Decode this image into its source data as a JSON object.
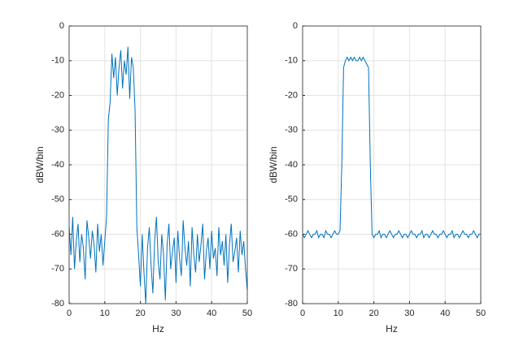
{
  "chart_data": [
    {
      "type": "line",
      "xlabel": "Hz",
      "ylabel": "dBW/bin",
      "x": [
        0,
        0.5,
        1,
        1.5,
        2,
        2.5,
        3,
        3.5,
        4,
        4.5,
        5,
        5.5,
        6,
        6.5,
        7,
        7.5,
        8,
        8.5,
        9,
        9.5,
        10,
        10.5,
        11,
        11.5,
        12,
        12.5,
        13,
        13.5,
        14,
        14.5,
        15,
        15.5,
        16,
        16.5,
        17,
        17.5,
        18,
        18.5,
        19,
        19.5,
        20,
        20.5,
        21,
        21.5,
        22,
        22.5,
        23,
        23.5,
        24,
        24.5,
        25,
        25.5,
        26,
        26.5,
        27,
        27.5,
        28,
        28.5,
        29,
        29.5,
        30,
        30.5,
        31,
        31.5,
        32,
        32.5,
        33,
        33.5,
        34,
        34.5,
        35,
        35.5,
        36,
        36.5,
        37,
        37.5,
        38,
        38.5,
        39,
        39.5,
        40,
        40.5,
        41,
        41.5,
        42,
        42.5,
        43,
        43.5,
        44,
        44.5,
        45,
        45.5,
        46,
        46.5,
        47,
        47.5,
        48,
        48.5,
        49,
        49.5,
        50
      ],
      "series": [
        {
          "color": "#0072bd",
          "values": [
            -58,
            -66,
            -55,
            -70,
            -62,
            -57,
            -68,
            -60,
            -64,
            -73,
            -56,
            -61,
            -67,
            -59,
            -63,
            -71,
            -57,
            -65,
            -60,
            -69,
            -62,
            -55,
            -27,
            -22,
            -8,
            -15,
            -9,
            -20,
            -12,
            -7,
            -18,
            -10,
            -14,
            -6,
            -21,
            -9,
            -12,
            -24,
            -58,
            -66,
            -75,
            -60,
            -71,
            -80,
            -64,
            -58,
            -69,
            -77,
            -62,
            -55,
            -68,
            -73,
            -60,
            -66,
            -79,
            -63,
            -57,
            -70,
            -65,
            -61,
            -74,
            -59,
            -67,
            -72,
            -56,
            -64,
            -69,
            -62,
            -75,
            -58,
            -66,
            -71,
            -60,
            -68,
            -63,
            -57,
            -73,
            -65,
            -61,
            -70,
            -59,
            -67,
            -64,
            -72,
            -58,
            -66,
            -62,
            -69,
            -60,
            -74,
            -63,
            -57,
            -68,
            -65,
            -61,
            -71,
            -59,
            -66,
            -62,
            -70,
            -76
          ]
        }
      ],
      "xlim": [
        0,
        50
      ],
      "ylim": [
        -80,
        0
      ],
      "xticks": [
        0,
        10,
        20,
        30,
        40,
        50
      ],
      "yticks": [
        -80,
        -70,
        -60,
        -50,
        -40,
        -30,
        -20,
        -10,
        0
      ],
      "grid": true
    },
    {
      "type": "line",
      "xlabel": "Hz",
      "ylabel": "dBW/bin",
      "x": [
        0,
        0.5,
        1,
        1.5,
        2,
        2.5,
        3,
        3.5,
        4,
        4.5,
        5,
        5.5,
        6,
        6.5,
        7,
        7.5,
        8,
        8.5,
        9,
        9.5,
        10,
        10.5,
        11,
        11.5,
        12,
        12.5,
        13,
        13.5,
        14,
        14.5,
        15,
        15.5,
        16,
        16.5,
        17,
        17.5,
        18,
        18.5,
        19,
        19.5,
        20,
        20.5,
        21,
        21.5,
        22,
        22.5,
        23,
        23.5,
        24,
        24.5,
        25,
        25.5,
        26,
        26.5,
        27,
        27.5,
        28,
        28.5,
        29,
        29.5,
        30,
        30.5,
        31,
        31.5,
        32,
        32.5,
        33,
        33.5,
        34,
        34.5,
        35,
        35.5,
        36,
        36.5,
        37,
        37.5,
        38,
        38.5,
        39,
        39.5,
        40,
        40.5,
        41,
        41.5,
        42,
        42.5,
        43,
        43.5,
        44,
        44.5,
        45,
        45.5,
        46,
        46.5,
        47,
        47.5,
        48,
        48.5,
        49,
        49.5,
        50
      ],
      "series": [
        {
          "color": "#0072bd",
          "values": [
            -60,
            -61,
            -60,
            -59,
            -60,
            -61,
            -60,
            -60,
            -59,
            -61,
            -60,
            -60,
            -61,
            -59,
            -60,
            -60,
            -61,
            -60,
            -59,
            -60,
            -60,
            -59,
            -40,
            -12,
            -10,
            -9,
            -10,
            -9,
            -10,
            -9,
            -10,
            -10,
            -9,
            -10,
            -9,
            -10,
            -11,
            -12,
            -40,
            -60,
            -61,
            -60,
            -60,
            -59,
            -61,
            -60,
            -60,
            -61,
            -60,
            -59,
            -60,
            -61,
            -60,
            -60,
            -59,
            -60,
            -61,
            -60,
            -60,
            -61,
            -60,
            -59,
            -60,
            -60,
            -61,
            -60,
            -60,
            -59,
            -61,
            -60,
            -60,
            -61,
            -60,
            -59,
            -60,
            -60,
            -61,
            -60,
            -60,
            -59,
            -60,
            -61,
            -60,
            -60,
            -59,
            -61,
            -60,
            -60,
            -61,
            -60,
            -59,
            -60,
            -60,
            -61,
            -60,
            -60,
            -59,
            -60,
            -61,
            -60,
            -60
          ]
        }
      ],
      "xlim": [
        0,
        50
      ],
      "ylim": [
        -80,
        0
      ],
      "xticks": [
        0,
        10,
        20,
        30,
        40,
        50
      ],
      "yticks": [
        -80,
        -70,
        -60,
        -50,
        -40,
        -30,
        -20,
        -10,
        0
      ],
      "grid": true
    }
  ]
}
